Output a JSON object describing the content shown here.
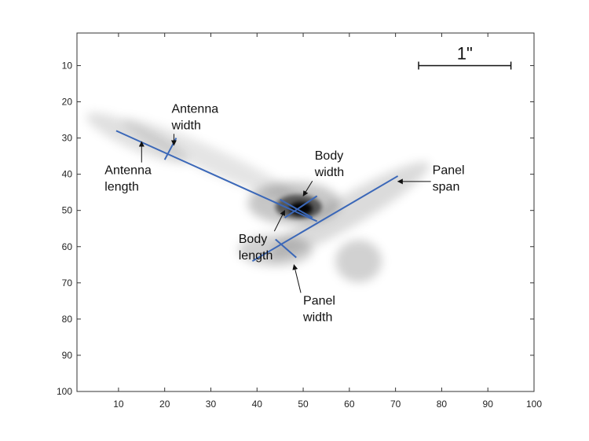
{
  "figure": {
    "x_ticks": [
      "10",
      "20",
      "30",
      "40",
      "50",
      "60",
      "70",
      "80",
      "90",
      "100"
    ],
    "y_ticks": [
      "10",
      "20",
      "30",
      "40",
      "50",
      "60",
      "70",
      "80",
      "90",
      "100"
    ],
    "x_range": [
      1,
      100
    ],
    "y_range": [
      1,
      100
    ],
    "y_axis_direction": "top-down",
    "line_color": "#3a67b8",
    "scale_bar": {
      "label": "1\"",
      "from_x": 75,
      "to_x": 95,
      "y": 10
    },
    "measurement_lines": [
      {
        "name": "antenna-length-line",
        "x1": 9.5,
        "y1": 28,
        "x2": 53,
        "y2": 53
      },
      {
        "name": "antenna-width-tick",
        "x1": 20,
        "y1": 36,
        "x2": 22.5,
        "y2": 30
      },
      {
        "name": "body-width-line",
        "x1": 45,
        "y1": 47,
        "x2": 52,
        "y2": 52
      },
      {
        "name": "body-length-line",
        "x1": 46,
        "y1": 52,
        "x2": 53,
        "y2": 46
      },
      {
        "name": "panel-span-line",
        "x1": 39,
        "y1": 64,
        "x2": 70.5,
        "y2": 40.5
      },
      {
        "name": "panel-width-tick",
        "x1": 44,
        "y1": 58,
        "x2": 48.5,
        "y2": 63
      }
    ],
    "annotations": [
      {
        "name": "antenna-width-label",
        "lines": [
          "Antenna",
          "width"
        ],
        "tx": 21.5,
        "ty": 23,
        "ax": 22,
        "ay": 32
      },
      {
        "name": "antenna-length-label",
        "lines": [
          "Antenna",
          "length"
        ],
        "tx": 7,
        "ty": 40,
        "ax": 15,
        "ay": 31
      },
      {
        "name": "body-width-label",
        "lines": [
          "Body",
          "width"
        ],
        "tx": 52.5,
        "ty": 36,
        "ax": 50,
        "ay": 46
      },
      {
        "name": "body-length-label",
        "lines": [
          "Body",
          "length"
        ],
        "tx": 36,
        "ty": 59,
        "ax": 46,
        "ay": 50
      },
      {
        "name": "panel-span-label",
        "lines": [
          "Panel",
          "span"
        ],
        "tx": 78,
        "ty": 40,
        "ax": 70.5,
        "ay": 42
      },
      {
        "name": "panel-width-label",
        "lines": [
          "Panel",
          "width"
        ],
        "tx": 50,
        "ty": 76,
        "ax": 48,
        "ay": 65
      }
    ]
  }
}
